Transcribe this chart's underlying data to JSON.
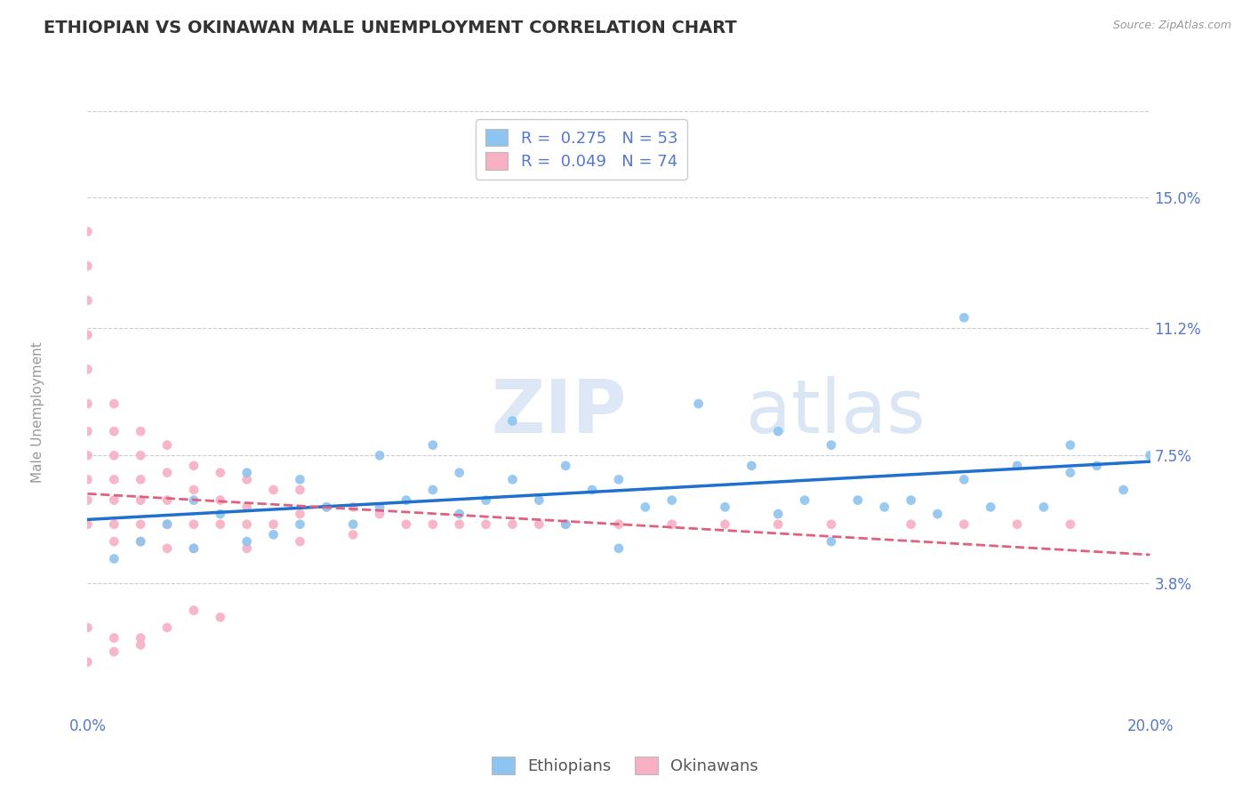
{
  "title": "ETHIOPIAN VS OKINAWAN MALE UNEMPLOYMENT CORRELATION CHART",
  "source": "Source: ZipAtlas.com",
  "ylabel": "Male Unemployment",
  "xlim": [
    0.0,
    0.2
  ],
  "ylim": [
    0.0,
    0.175
  ],
  "yticks": [
    0.038,
    0.075,
    0.112,
    0.15
  ],
  "ytick_labels": [
    "3.8%",
    "7.5%",
    "11.2%",
    "15.0%"
  ],
  "xticks": [
    0.0,
    0.04,
    0.08,
    0.12,
    0.16,
    0.2
  ],
  "xtick_labels": [
    "0.0%",
    "",
    "",
    "",
    "",
    "20.0%"
  ],
  "ethiopian_R": 0.275,
  "ethiopian_N": 53,
  "okinawan_R": 0.049,
  "okinawan_N": 74,
  "ethiopian_color": "#8ec4f0",
  "okinawan_color": "#f7b0c4",
  "ethiopian_line_color": "#2070d0",
  "okinawan_line_color": "#e06080",
  "background_color": "#ffffff",
  "grid_color": "#cccccc",
  "title_color": "#333333",
  "axis_label_color": "#5577cc",
  "watermark_zip": "ZIP",
  "watermark_atlas": "atlas",
  "legend_eth_label": "R =  0.275   N = 53",
  "legend_oki_label": "R =  0.049   N = 74",
  "eth_x": [
    0.005,
    0.01,
    0.015,
    0.02,
    0.02,
    0.025,
    0.03,
    0.03,
    0.035,
    0.04,
    0.04,
    0.045,
    0.05,
    0.055,
    0.055,
    0.06,
    0.065,
    0.065,
    0.07,
    0.07,
    0.075,
    0.08,
    0.08,
    0.085,
    0.09,
    0.09,
    0.095,
    0.1,
    0.1,
    0.105,
    0.11,
    0.115,
    0.12,
    0.125,
    0.13,
    0.13,
    0.135,
    0.14,
    0.14,
    0.145,
    0.15,
    0.155,
    0.16,
    0.165,
    0.165,
    0.17,
    0.175,
    0.18,
    0.185,
    0.185,
    0.19,
    0.195,
    0.2
  ],
  "eth_y": [
    0.045,
    0.05,
    0.055,
    0.048,
    0.062,
    0.058,
    0.05,
    0.07,
    0.052,
    0.055,
    0.068,
    0.06,
    0.055,
    0.06,
    0.075,
    0.062,
    0.065,
    0.078,
    0.058,
    0.07,
    0.062,
    0.068,
    0.085,
    0.062,
    0.055,
    0.072,
    0.065,
    0.048,
    0.068,
    0.06,
    0.062,
    0.09,
    0.06,
    0.072,
    0.058,
    0.082,
    0.062,
    0.05,
    0.078,
    0.062,
    0.06,
    0.062,
    0.058,
    0.068,
    0.115,
    0.06,
    0.072,
    0.06,
    0.07,
    0.078,
    0.072,
    0.065,
    0.075
  ],
  "oki_x": [
    0.0,
    0.0,
    0.0,
    0.0,
    0.0,
    0.0,
    0.0,
    0.0,
    0.0,
    0.0,
    0.0,
    0.005,
    0.005,
    0.005,
    0.005,
    0.005,
    0.005,
    0.005,
    0.01,
    0.01,
    0.01,
    0.01,
    0.01,
    0.01,
    0.015,
    0.015,
    0.015,
    0.015,
    0.015,
    0.02,
    0.02,
    0.02,
    0.02,
    0.025,
    0.025,
    0.025,
    0.03,
    0.03,
    0.03,
    0.03,
    0.035,
    0.035,
    0.04,
    0.04,
    0.04,
    0.045,
    0.05,
    0.05,
    0.055,
    0.06,
    0.065,
    0.07,
    0.075,
    0.08,
    0.085,
    0.09,
    0.1,
    0.11,
    0.12,
    0.13,
    0.14,
    0.155,
    0.165,
    0.175,
    0.185,
    0.0,
    0.005,
    0.01,
    0.015,
    0.02,
    0.025,
    0.0,
    0.005,
    0.01
  ],
  "oki_y": [
    0.14,
    0.13,
    0.12,
    0.11,
    0.1,
    0.09,
    0.082,
    0.075,
    0.068,
    0.062,
    0.055,
    0.09,
    0.082,
    0.075,
    0.068,
    0.062,
    0.055,
    0.05,
    0.082,
    0.075,
    0.068,
    0.062,
    0.055,
    0.05,
    0.078,
    0.07,
    0.062,
    0.055,
    0.048,
    0.072,
    0.065,
    0.055,
    0.048,
    0.07,
    0.062,
    0.055,
    0.068,
    0.06,
    0.055,
    0.048,
    0.065,
    0.055,
    0.065,
    0.058,
    0.05,
    0.06,
    0.06,
    0.052,
    0.058,
    0.055,
    0.055,
    0.055,
    0.055,
    0.055,
    0.055,
    0.055,
    0.055,
    0.055,
    0.055,
    0.055,
    0.055,
    0.055,
    0.055,
    0.055,
    0.055,
    0.025,
    0.022,
    0.022,
    0.025,
    0.03,
    0.028,
    0.015,
    0.018,
    0.02
  ]
}
